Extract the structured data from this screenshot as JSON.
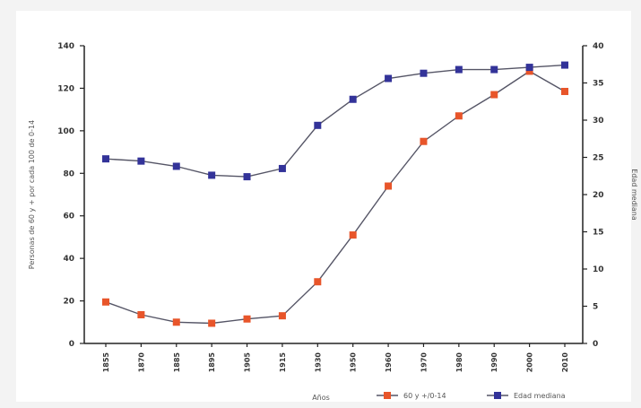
{
  "chart_data": {
    "type": "line",
    "x": [
      "1855",
      "1870",
      "1885",
      "1895",
      "1905",
      "1915",
      "1930",
      "1950",
      "1960",
      "1970",
      "1980",
      "1990",
      "2000",
      "2010"
    ],
    "xlabel": "Años",
    "y_left": {
      "label": "Personas de 60 y + por cada 100 de 0-14",
      "lim": [
        0,
        140
      ],
      "ticks": [
        0,
        20,
        40,
        60,
        80,
        100,
        120,
        140
      ]
    },
    "y_right": {
      "label": "Edad mediana",
      "lim": [
        0,
        40
      ],
      "ticks": [
        0,
        5,
        10,
        15,
        20,
        25,
        30,
        35,
        40
      ]
    },
    "series": [
      {
        "name": "60 y +/0-14",
        "axis": "left",
        "color": "#e8552a",
        "marker": "square",
        "values": [
          19.5,
          13.5,
          10,
          9.5,
          11.5,
          13,
          29,
          51,
          74,
          95,
          107,
          117,
          128,
          118.5
        ]
      },
      {
        "name": "Edad mediana",
        "axis": "right",
        "color": "#333399",
        "marker": "square",
        "values": [
          24.8,
          24.5,
          23.8,
          22.6,
          22.4,
          23.5,
          29.3,
          32.8,
          35.6,
          36.3,
          36.8,
          36.8,
          37.1,
          37.4
        ]
      }
    ],
    "grid": false,
    "legend_position": "bottom"
  }
}
